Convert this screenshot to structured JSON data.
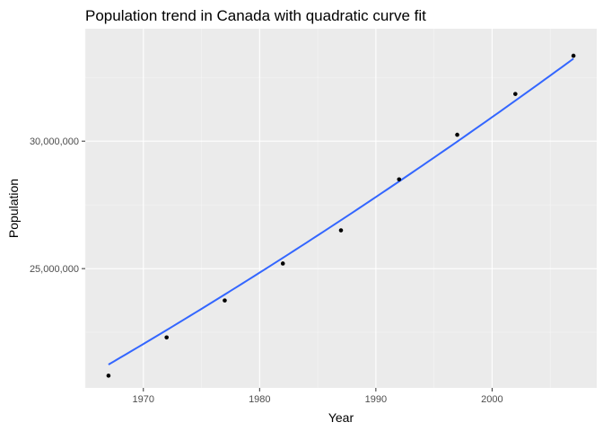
{
  "chart_data": {
    "type": "scatter",
    "title": "Population trend in Canada with quadratic curve fit",
    "xlabel": "Year",
    "ylabel": "Population",
    "xlim": [
      1965,
      2009
    ],
    "ylim": [
      20320000,
      34410000
    ],
    "x_major_ticks": [
      1970,
      1980,
      1990,
      2000
    ],
    "x_tick_labels": [
      "1970",
      "1980",
      "1990",
      "2000"
    ],
    "x_minor_ticks": [
      1965,
      1975,
      1985,
      1995,
      2005
    ],
    "y_major_ticks": [
      25000000,
      30000000
    ],
    "y_tick_labels": [
      "25,000,000",
      "30,000,000"
    ],
    "y_minor_ticks": [
      22500000,
      27500000,
      32500000
    ],
    "grid": true,
    "legend": "none",
    "series": [
      {
        "kind": "points",
        "x": [
          1967,
          1972,
          1977,
          1982,
          1987,
          1992,
          1997,
          2002,
          2007
        ],
        "y": [
          20800000,
          22300000,
          23750000,
          25200000,
          26500000,
          28500000,
          30250000,
          31850000,
          33350000
        ]
      },
      {
        "kind": "quadratic-fit",
        "coefficients": {
          "a": 840,
          "b": 300000,
          "c": 26900000,
          "center_year": 1987
        },
        "x_range": [
          1967,
          2007
        ]
      }
    ],
    "colors": {
      "panel_background": "#ebebeb",
      "grid_major": "#ffffff",
      "grid_minor": "#f5f5f5",
      "point": "#000000",
      "fit_line": "#3366ff",
      "tick_label": "#4d4d4d",
      "tick_mark": "#333333"
    }
  }
}
